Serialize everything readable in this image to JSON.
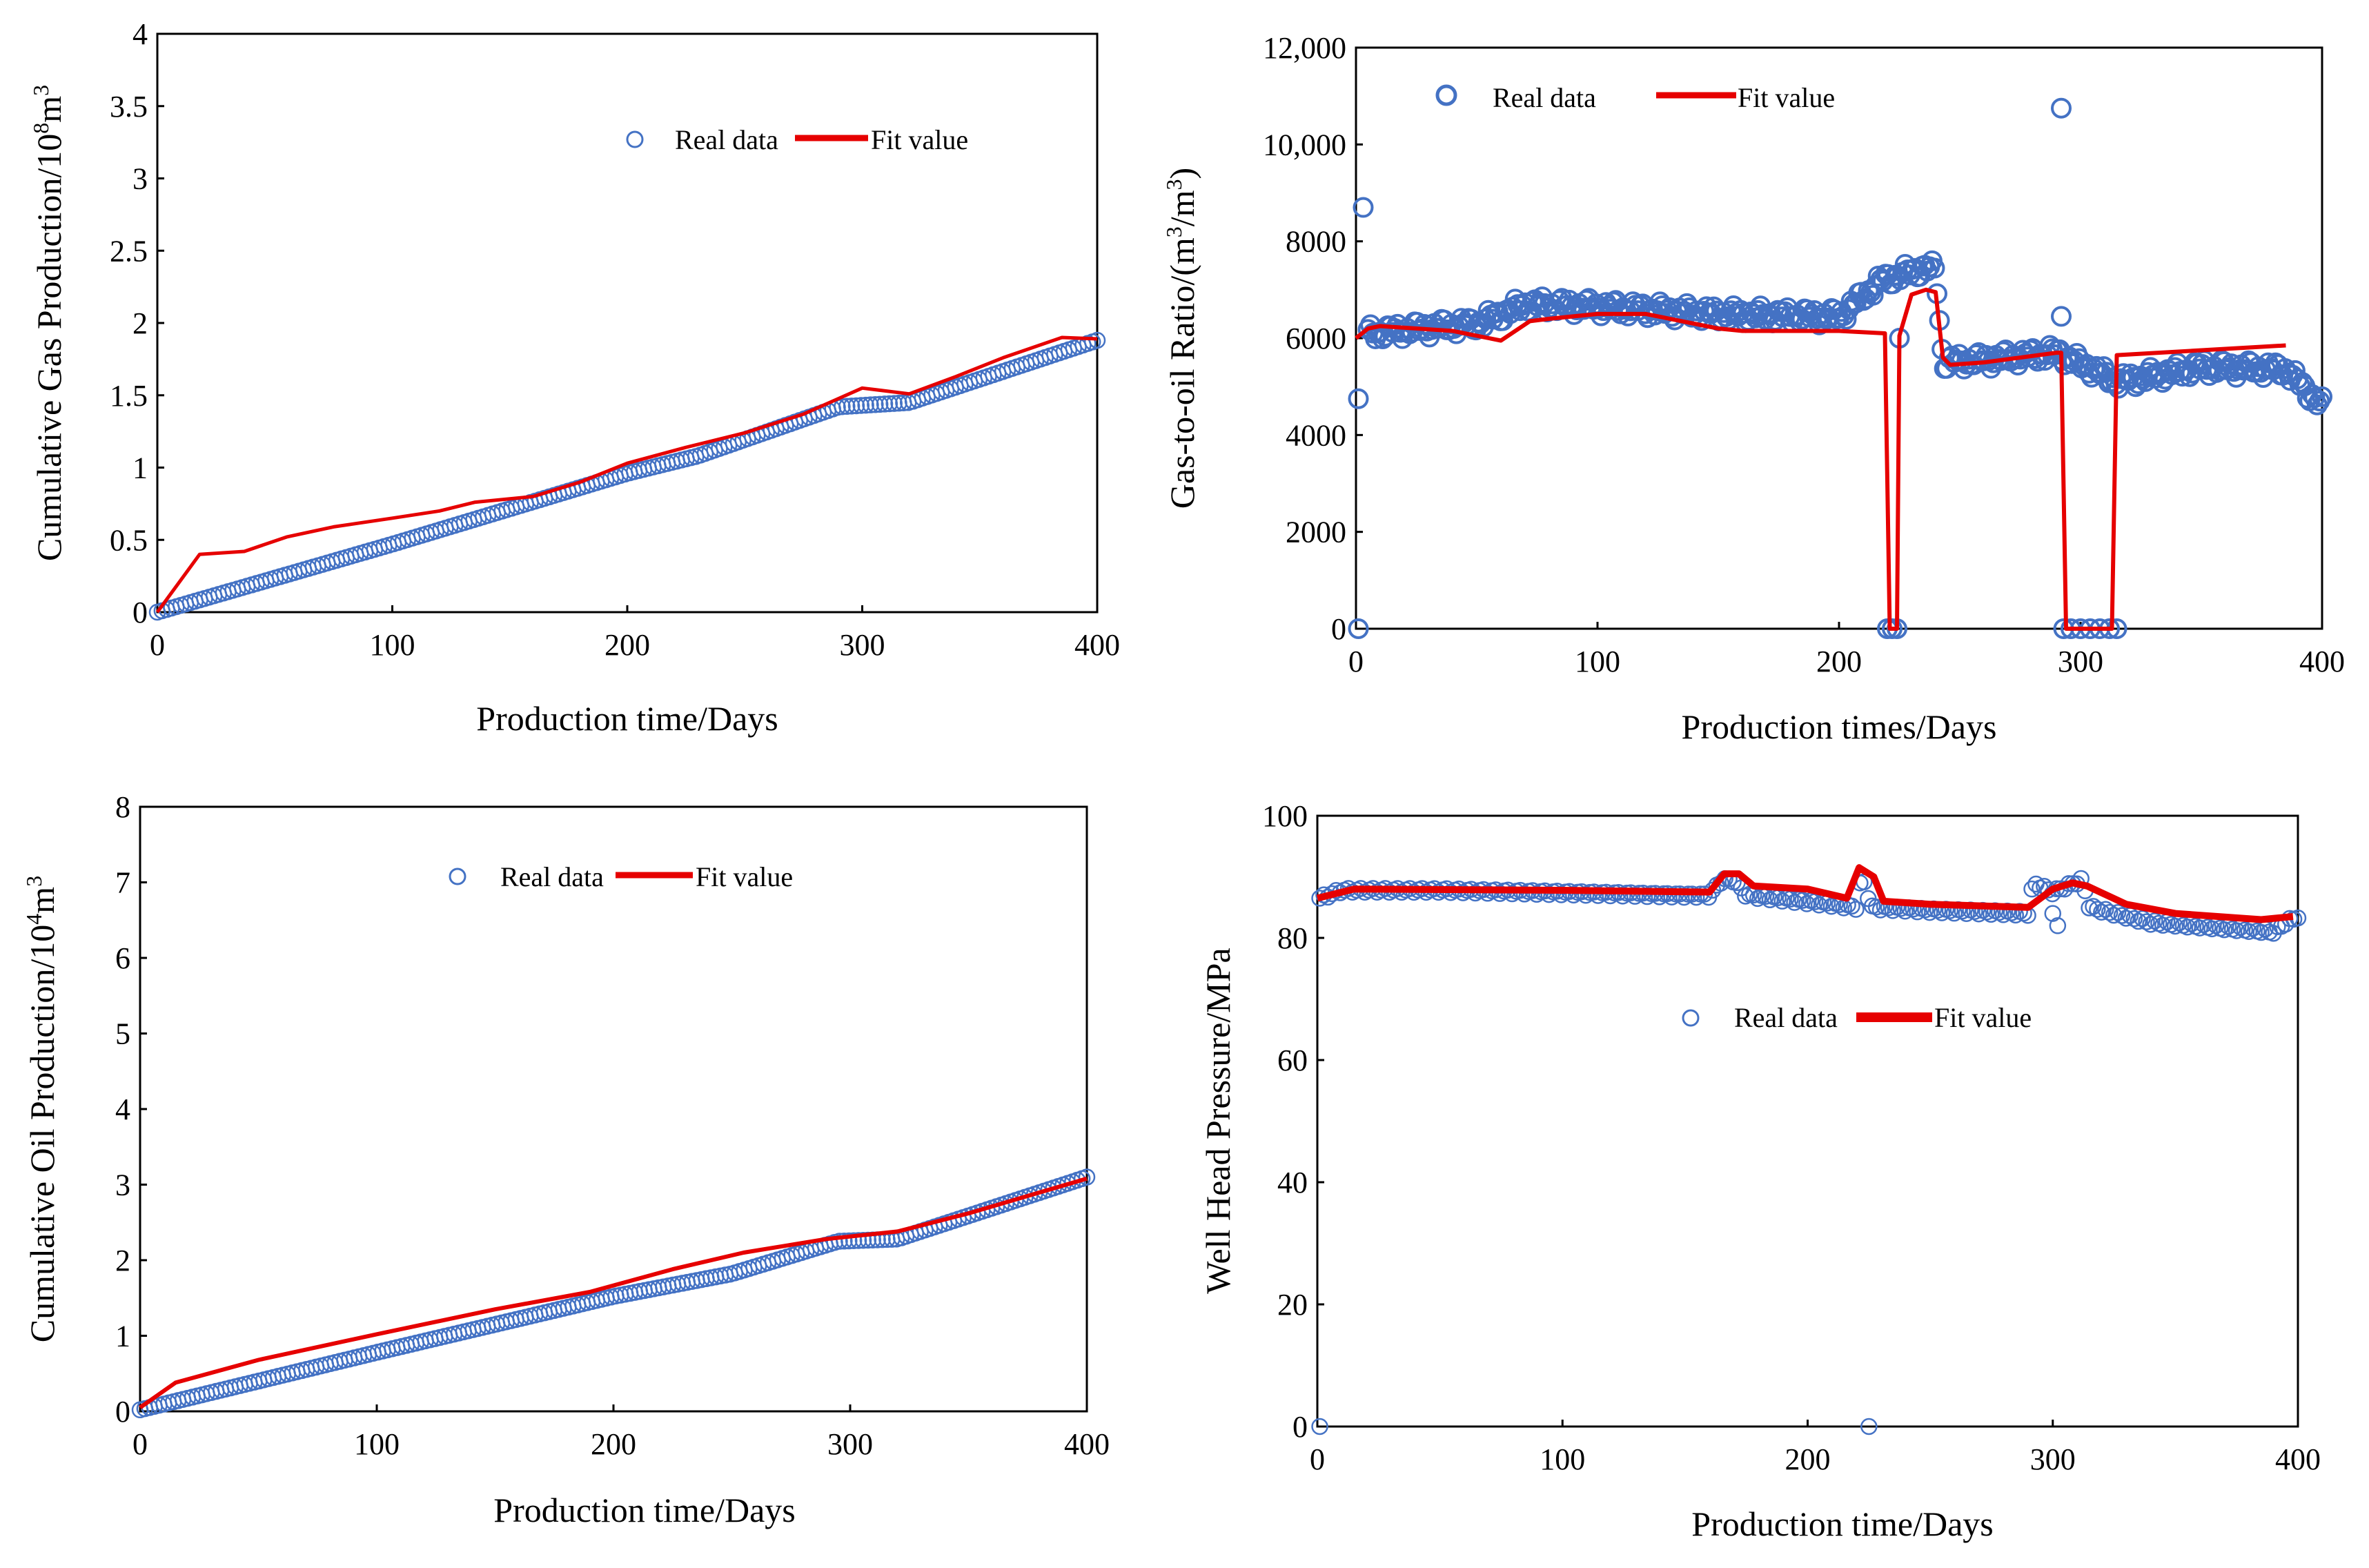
{
  "chart_data": [
    {
      "type": "scatter",
      "panel": "top-left",
      "title": "",
      "xlabel": "Production time/Days",
      "ylabel_parts": [
        "Cumulative Gas Production/10",
        "8",
        "m",
        "3"
      ],
      "xlim": [
        0,
        400
      ],
      "ylim": [
        0,
        4
      ],
      "xticks": [
        0,
        100,
        200,
        300,
        400
      ],
      "yticks": [
        0,
        0.5,
        1,
        1.5,
        2,
        2.5,
        3,
        3.5,
        4
      ],
      "ytick_labels": [
        "0",
        "0.5",
        "1",
        "1.5",
        "2",
        "2.5",
        "3",
        "3.5",
        "4"
      ],
      "legend": {
        "real": "Real data",
        "fit": "Fit value",
        "placement": "top-center"
      },
      "series": [
        {
          "name": "Real data",
          "kind": "markers",
          "x": [
            0,
            400
          ],
          "y": [
            0,
            1.88
          ],
          "points": 200,
          "profile": [
            [
              0,
              0
            ],
            [
              100,
              0.47
            ],
            [
              200,
              0.96
            ],
            [
              230,
              1.08
            ],
            [
              290,
              1.42
            ],
            [
              320,
              1.45
            ],
            [
              400,
              1.88
            ]
          ]
        },
        {
          "name": "Fit value",
          "kind": "line",
          "x": [
            0,
            18,
            37,
            55,
            75,
            100,
            120,
            135,
            160,
            180,
            200,
            225,
            250,
            275,
            300,
            320,
            340,
            360,
            385,
            400
          ],
          "y": [
            0,
            0.4,
            0.42,
            0.52,
            0.59,
            0.65,
            0.7,
            0.76,
            0.8,
            0.9,
            1.03,
            1.14,
            1.24,
            1.37,
            1.55,
            1.51,
            1.63,
            1.76,
            1.9,
            1.89
          ]
        }
      ]
    },
    {
      "type": "scatter",
      "panel": "top-right",
      "title": "",
      "xlabel": "Production times/Days",
      "ylabel_parts": [
        "Gas-to-oil Ratio/(m",
        "3",
        "/m",
        "3",
        ")"
      ],
      "xlim": [
        0,
        400
      ],
      "ylim": [
        0,
        12000
      ],
      "xticks": [
        0,
        100,
        200,
        300,
        400
      ],
      "yticks": [
        0,
        2000,
        4000,
        6000,
        8000,
        10000,
        12000
      ],
      "ytick_labels": [
        "0",
        "2000",
        "4000",
        "6000",
        "8000",
        "10,000",
        "12,000"
      ],
      "legend": {
        "real": "Real data",
        "fit": "Fit value",
        "placement": "top-left"
      },
      "series": [
        {
          "name": "Real data",
          "kind": "markers",
          "points": 390,
          "outliers": [
            [
              1,
              4750
            ],
            [
              3,
              8700
            ],
            [
              1,
              0
            ],
            [
              220,
              0
            ],
            [
              222,
              0
            ],
            [
              224,
              0
            ],
            [
              225,
              6000
            ],
            [
              292,
              10750
            ],
            [
              292,
              6450
            ],
            [
              293,
              0
            ],
            [
              296,
              0
            ],
            [
              300,
              0
            ],
            [
              304,
              0
            ],
            [
              308,
              0
            ],
            [
              312,
              0
            ],
            [
              315,
              0
            ]
          ],
          "profile": [
            [
              5,
              6100
            ],
            [
              50,
              6300
            ],
            [
              70,
              6700
            ],
            [
              100,
              6650
            ],
            [
              150,
              6500
            ],
            [
              200,
              6450
            ],
            [
              218,
              7200
            ],
            [
              235,
              7450
            ],
            [
              240,
              7400
            ],
            [
              243,
              5500
            ],
            [
              260,
              5550
            ],
            [
              290,
              5700
            ],
            [
              316,
              5100
            ],
            [
              350,
              5400
            ],
            [
              385,
              5350
            ],
            [
              392,
              5000
            ],
            [
              400,
              4600
            ]
          ]
        },
        {
          "name": "Fit value",
          "kind": "line",
          "x": [
            0,
            5,
            10,
            40,
            60,
            72,
            80,
            100,
            120,
            150,
            160,
            200,
            219,
            221,
            224,
            225,
            230,
            236,
            240,
            243,
            246,
            260,
            290,
            292,
            294,
            313,
            315,
            385
          ],
          "y": [
            6000,
            6200,
            6250,
            6150,
            5950,
            6350,
            6400,
            6500,
            6500,
            6200,
            6150,
            6150,
            6100,
            0,
            0,
            6050,
            6900,
            7000,
            6950,
            5600,
            5450,
            5500,
            5700,
            5700,
            0,
            0,
            5650,
            5850
          ]
        }
      ]
    },
    {
      "type": "scatter",
      "panel": "bottom-left",
      "title": "",
      "xlabel": "Production time/Days",
      "ylabel_parts": [
        "Cumulative Oil Production/10",
        "4",
        "m",
        "3"
      ],
      "xlim": [
        0,
        400
      ],
      "ylim": [
        0,
        8
      ],
      "xticks": [
        0,
        100,
        200,
        300,
        400
      ],
      "yticks": [
        0,
        1,
        2,
        3,
        4,
        5,
        6,
        7,
        8
      ],
      "ytick_labels": [
        "0",
        "1",
        "2",
        "3",
        "4",
        "5",
        "6",
        "7",
        "8"
      ],
      "legend": {
        "real": "Real data",
        "fit": "Fit value",
        "placement": "top-center"
      },
      "series": [
        {
          "name": "Real data",
          "kind": "markers",
          "points": 200,
          "profile": [
            [
              0,
              0.02
            ],
            [
              100,
              0.78
            ],
            [
              200,
              1.52
            ],
            [
              250,
              1.82
            ],
            [
              295,
              2.25
            ],
            [
              320,
              2.28
            ],
            [
              400,
              3.1
            ]
          ]
        },
        {
          "name": "Fit value",
          "kind": "line",
          "x": [
            0,
            15,
            50,
            100,
            150,
            190,
            225,
            255,
            290,
            320,
            350,
            400
          ],
          "y": [
            0.05,
            0.38,
            0.68,
            1.02,
            1.35,
            1.58,
            1.88,
            2.1,
            2.28,
            2.38,
            2.62,
            3.08
          ]
        }
      ]
    },
    {
      "type": "scatter",
      "panel": "bottom-right",
      "title": "",
      "xlabel": "Production time/Days",
      "ylabel_parts": [
        "Well Head Pressure/MPa"
      ],
      "xlim": [
        0,
        400
      ],
      "ylim": [
        0,
        100
      ],
      "xticks": [
        0,
        100,
        200,
        300,
        400
      ],
      "yticks": [
        0,
        20,
        40,
        60,
        80,
        100
      ],
      "ytick_labels": [
        "0",
        "20",
        "40",
        "60",
        "80",
        "100"
      ],
      "legend": {
        "real": "Real data",
        "fit": "Fit value",
        "placement": "center"
      },
      "series": [
        {
          "name": "Real data",
          "kind": "markers",
          "points": 240,
          "outliers": [
            [
              1,
              0
            ],
            [
              225,
              0
            ],
            [
              300,
              84
            ],
            [
              302,
              82
            ]
          ],
          "profile": [
            [
              1,
              86.5
            ],
            [
              10,
              87.8
            ],
            [
              50,
              87.8
            ],
            [
              150,
              87
            ],
            [
              160,
              87
            ],
            [
              165,
              89.5
            ],
            [
              170,
              89.5
            ],
            [
              175,
              87
            ],
            [
              210,
              85.5
            ],
            [
              220,
              85
            ],
            [
              222,
              90.5
            ],
            [
              226,
              85
            ],
            [
              250,
              84.5
            ],
            [
              290,
              84
            ],
            [
              292,
              89
            ],
            [
              300,
              87.5
            ],
            [
              312,
              89.5
            ],
            [
              315,
              85
            ],
            [
              340,
              82.5
            ],
            [
              390,
              81
            ],
            [
              395,
              82.5
            ],
            [
              400,
              83.5
            ]
          ]
        },
        {
          "name": "Fit value",
          "kind": "line",
          "x": [
            0,
            15,
            100,
            160,
            166,
            172,
            178,
            200,
            216,
            221,
            227,
            231,
            250,
            290,
            300,
            308,
            314,
            330,
            350,
            385,
            398
          ],
          "y": [
            86.5,
            88,
            87.8,
            87.5,
            90.5,
            90.5,
            88.5,
            88,
            86.5,
            91.5,
            90,
            86,
            85.5,
            85,
            88,
            89,
            88.5,
            85.5,
            84,
            83,
            83.5
          ]
        }
      ]
    }
  ]
}
